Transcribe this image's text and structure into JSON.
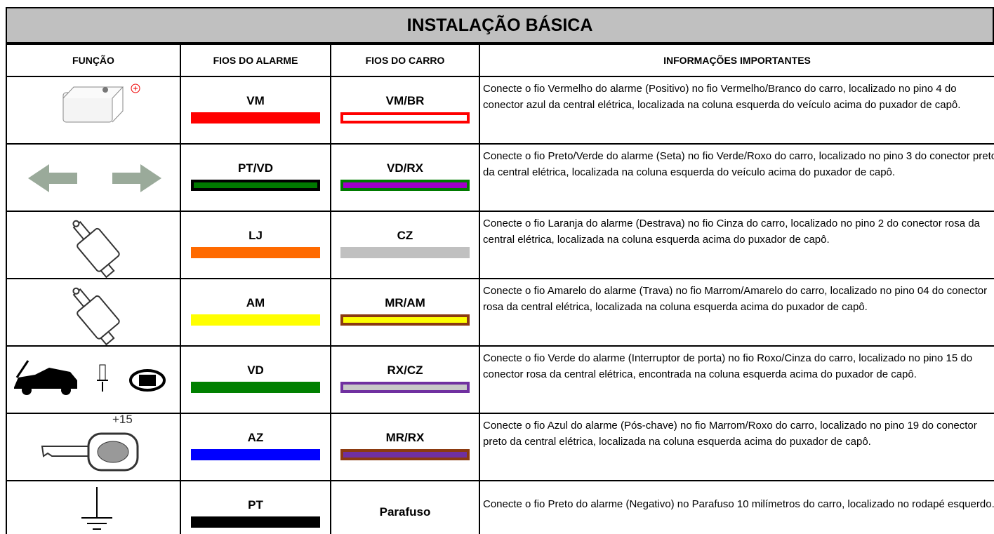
{
  "header": {
    "title": "INSTALAÇÃO BÁSICA"
  },
  "table": {
    "columns": [
      "FUNÇÃO",
      "FIOS DO ALARME",
      "FIOS DO CARRO",
      "INFORMAÇÕES IMPORTANTES"
    ],
    "rows": [
      {
        "icon_text": null,
        "alarm_wire": "VM",
        "car_wire": "VM/BR",
        "info": "Conecte o fio Vermelho do alarme (Positivo) no fio Vermelho/Branco do carro, localizado no pino 4 do conector azul da central elétrica, localizada na coluna esquerda do veículo acima do puxador de capô."
      },
      {
        "icon_text": null,
        "alarm_wire": "PT/VD",
        "car_wire": "VD/RX",
        "info": "Conecte o fio Preto/Verde do alarme (Seta) no fio Verde/Roxo do carro, localizado no pino 3 do conector preto da central elétrica, localizada na coluna esquerda do veículo acima do puxador de capô."
      },
      {
        "icon_text": null,
        "alarm_wire": "LJ",
        "car_wire": "CZ",
        "info": "Conecte o fio Laranja do alarme (Destrava) no fio Cinza do carro, localizado no pino 2 do conector rosa da central elétrica, localizada na coluna esquerda acima do puxador de capô."
      },
      {
        "icon_text": null,
        "alarm_wire": "AM",
        "car_wire": "MR/AM",
        "info": "Conecte o fio Amarelo do alarme (Trava) no fio Marrom/Amarelo do carro, localizado no pino 04 do conector rosa da central elétrica, localizada na coluna esquerda acima do puxador de capô."
      },
      {
        "icon_text": null,
        "alarm_wire": "VD",
        "car_wire": "RX/CZ",
        "info": "Conecte o fio Verde do alarme (Interruptor de porta) no fio Roxo/Cinza do carro, localizado no pino 15 do conector rosa da central elétrica, encontrada na coluna esquerda acima do puxador de capô."
      },
      {
        "icon_text": "+15",
        "alarm_wire": "AZ",
        "car_wire": "MR/RX",
        "info": "Conecte o fio Azul do alarme (Pós-chave) no fio Marrom/Roxo do carro, localizado no pino 19 do conector preto da central elétrica, localizada na coluna esquerda acima do puxador de capô."
      },
      {
        "icon_text": null,
        "alarm_wire": "PT",
        "car_wire": "Parafuso",
        "info": "Conecte o fio Preto do alarme (Negativo) no Parafuso 10 milímetros do carro, localizado no rodapé esquerdo."
      }
    ]
  }
}
